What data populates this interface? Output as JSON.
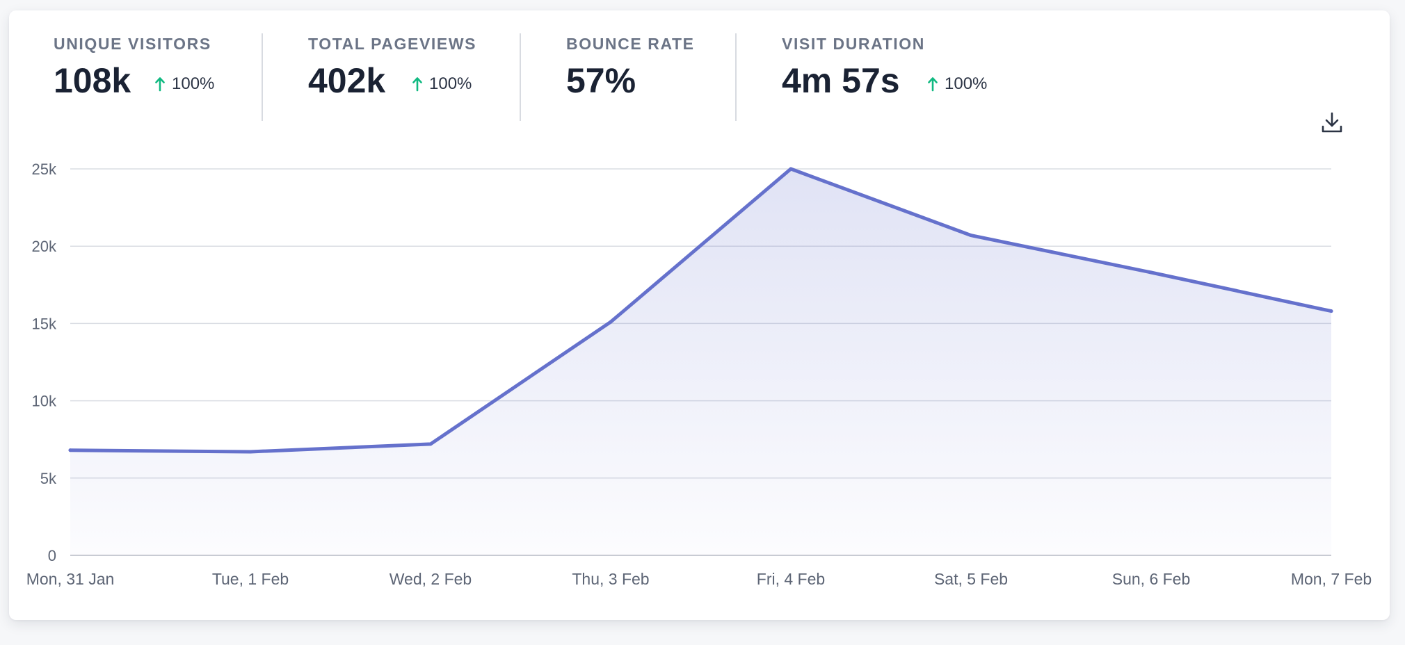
{
  "stats": [
    {
      "label": "UNIQUE VISITORS",
      "value": "108k",
      "change": "100%",
      "direction": "up"
    },
    {
      "label": "TOTAL PAGEVIEWS",
      "value": "402k",
      "change": "100%",
      "direction": "up"
    },
    {
      "label": "BOUNCE RATE",
      "value": "57%",
      "change": "",
      "direction": ""
    },
    {
      "label": "VISIT DURATION",
      "value": "4m 57s",
      "change": "100%",
      "direction": "up"
    }
  ],
  "icons": {
    "download": "download-icon",
    "change_up": "arrow-up-icon"
  },
  "colors": {
    "line": "#6571cc",
    "fill": "#6571cc",
    "change_up": "#10b981",
    "grid": "#dadde3"
  },
  "chart_data": {
    "type": "area",
    "x": [
      "Mon, 31 Jan",
      "Tue, 1 Feb",
      "Wed, 2 Feb",
      "Thu, 3 Feb",
      "Fri, 4 Feb",
      "Sat, 5 Feb",
      "Sun, 6 Feb",
      "Mon, 7 Feb"
    ],
    "series": [
      {
        "values": [
          6800,
          6700,
          7200,
          15100,
          25000,
          20700,
          18300,
          15800
        ]
      }
    ],
    "yticks": [
      "0",
      "5k",
      "10k",
      "15k",
      "20k",
      "25k"
    ],
    "ytick_values": [
      0,
      5000,
      10000,
      15000,
      20000,
      25000
    ],
    "ylim": [
      0,
      25000
    ],
    "grid": true,
    "title": "",
    "xlabel": "",
    "ylabel": ""
  }
}
